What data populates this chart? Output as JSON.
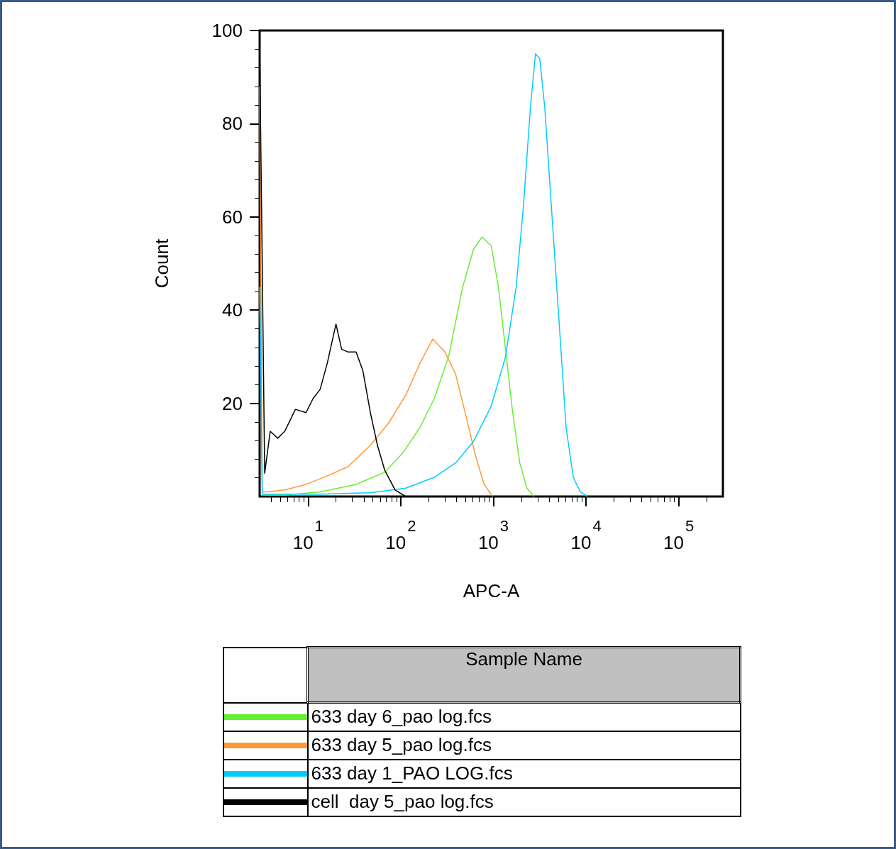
{
  "chart_data": {
    "type": "line",
    "xlabel": "APC-A",
    "ylabel": "Count",
    "legend_title": "Sample Name",
    "legend": "bottom",
    "log": "x",
    "grid": false,
    "marker": "none",
    "line_style": "solid",
    "xlim": [
      3,
      300000
    ],
    "xticks": [
      {
        "value": 10,
        "label": "10$^{1}$"
      },
      {
        "value": 100,
        "label": "10$^{2}$"
      },
      {
        "value": 1000,
        "label": "10$^{3}$"
      },
      {
        "value": 10000,
        "label": "10$^{4}$"
      },
      {
        "value": 100000,
        "label": "10$^{5}$"
      }
    ],
    "ylim": [
      0,
      100
    ],
    "yticks": [
      20,
      40,
      60,
      80,
      100
    ],
    "series": [
      {
        "name": "633 day 6_pao log.fcs",
        "color": "#66ee33",
        "x": [
          3.2,
          5.6,
          13.5,
          33,
          67,
          104,
          161,
          230,
          328,
          467,
          609,
          753,
          948,
          1132,
          1352,
          1614,
          1927,
          2300,
          2743
        ],
        "values": [
          0.3,
          0.3,
          1,
          2.6,
          5.2,
          9.2,
          14.8,
          21,
          30,
          45,
          53,
          55.7,
          53.8,
          45,
          31.6,
          18,
          7.2,
          1.8,
          0
        ]
      },
      {
        "name": "633 day 5_pao log.fcs",
        "color": "#ff9933",
        "x": [
          3,
          3.2,
          3.6,
          5.6,
          9.5,
          16,
          27,
          47,
          73,
          113,
          161,
          222,
          300,
          391,
          510,
          643,
          794,
          982
        ],
        "values": [
          88,
          1,
          1,
          1.4,
          2.6,
          4.4,
          6.4,
          11,
          15.6,
          21.7,
          28.6,
          33.8,
          31,
          26.3,
          17,
          8.7,
          2.6,
          0
        ]
      },
      {
        "name": "633 day 1_PAO LOG.fcs",
        "color": "#00ccff",
        "x": [
          3,
          3.2,
          13.5,
          47,
          113,
          230,
          391,
          609,
          948,
          1352,
          1762,
          2104,
          2512,
          2844,
          3162,
          3580,
          4276,
          5104,
          6095,
          7278,
          8670,
          10350
        ],
        "values": [
          45,
          0.5,
          0.5,
          0.8,
          1.8,
          4.1,
          7.2,
          11.8,
          19.4,
          30,
          45,
          62,
          83.6,
          95,
          94,
          83.6,
          60.7,
          37.8,
          14.8,
          4.1,
          1,
          0
        ]
      },
      {
        "name": "cell  day 5_pao log.fcs",
        "color": "#000000",
        "x": [
          3,
          3.4,
          3.9,
          4.7,
          5.6,
          7.3,
          9.5,
          11.3,
          13.5,
          16.1,
          20,
          23,
          27,
          33,
          39,
          47,
          56,
          67,
          87,
          113
        ],
        "values": [
          97,
          5,
          14,
          12.5,
          14,
          18.7,
          18,
          21,
          23,
          28.6,
          37,
          31.6,
          31,
          31,
          27,
          18,
          11,
          5.7,
          1.4,
          0
        ]
      }
    ]
  }
}
